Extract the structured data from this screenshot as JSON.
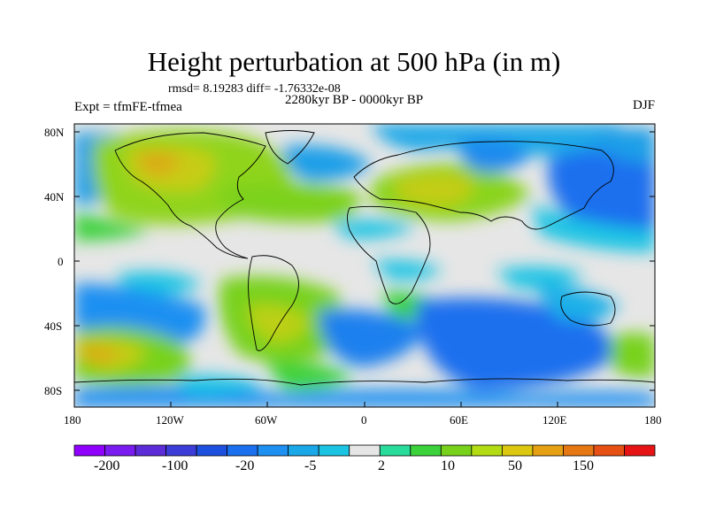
{
  "title": "Height perturbation at 500 hPa (in m)",
  "stats": "rmsd= 8.19283 diff= -1.76332e-08",
  "experiment": "Expt = tfmFE-tfmea",
  "period": "2280kyr BP - 0000kyr BP",
  "season": "DJF",
  "lat_labels": [
    "80N",
    "40N",
    "0",
    "40S",
    "80S"
  ],
  "lon_labels": [
    "180",
    "120W",
    "60W",
    "0",
    "60E",
    "120E",
    "180"
  ],
  "colorbar": {
    "colors": [
      "#8f00ff",
      "#7a1bf0",
      "#5c2cd8",
      "#3c3cd8",
      "#1e50e0",
      "#1a70ee",
      "#1e90f2",
      "#1aa8e8",
      "#1cc4e4",
      "#e6e6e6",
      "#2adc9c",
      "#3cd23c",
      "#78d21c",
      "#b4dc14",
      "#dcc810",
      "#e6a014",
      "#e67814",
      "#e65014",
      "#e61414"
    ],
    "labels": [
      "-200",
      "-100",
      "-20",
      "-5",
      "2",
      "10",
      "50",
      "150"
    ]
  },
  "colors": {
    "ocean_background": "#e6e6e6",
    "border": "#000000"
  }
}
